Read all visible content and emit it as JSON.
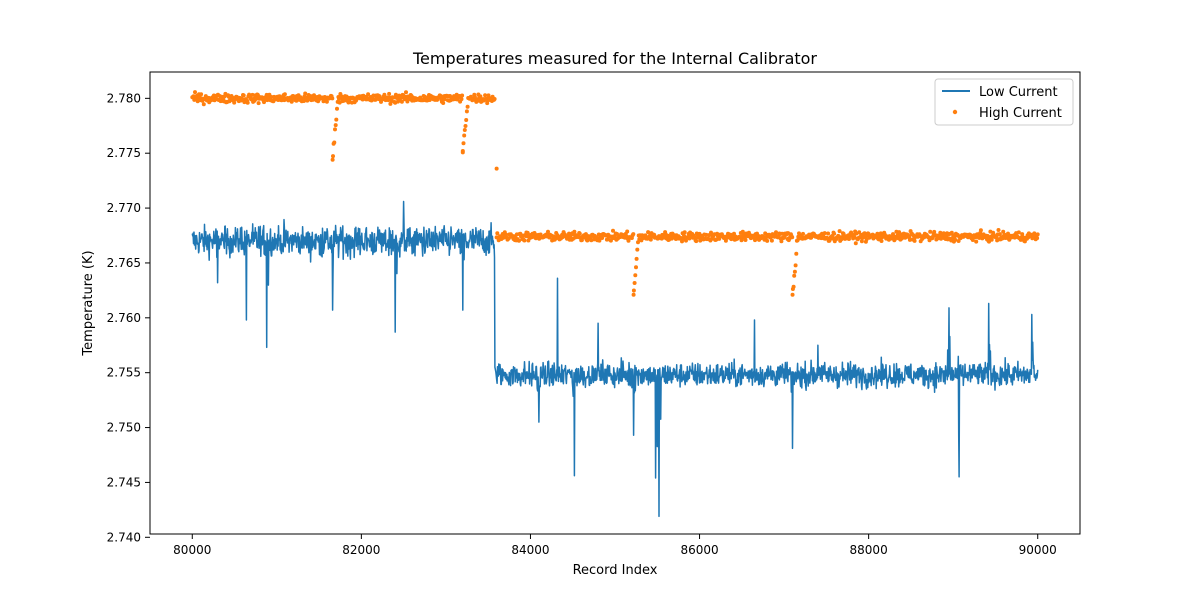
{
  "chart_data": {
    "type": "line",
    "title": "Temperatures measured for the Internal Calibrator",
    "xlabel": "Record Index",
    "ylabel": "Temperature (K)",
    "xlim": [
      79500,
      90500
    ],
    "ylim": [
      2.7403,
      2.7824
    ],
    "xticks": [
      80000,
      82000,
      84000,
      86000,
      88000,
      90000
    ],
    "xtick_labels": [
      "80000",
      "82000",
      "84000",
      "86000",
      "88000",
      "90000"
    ],
    "yticks": [
      2.74,
      2.745,
      2.75,
      2.755,
      2.76,
      2.765,
      2.77,
      2.775,
      2.78
    ],
    "ytick_labels": [
      "2.740",
      "2.745",
      "2.750",
      "2.755",
      "2.760",
      "2.765",
      "2.770",
      "2.775",
      "2.780"
    ],
    "grid": false,
    "legend_position": "top-right",
    "series": [
      {
        "name": "Low Current",
        "kind": "line",
        "color": "#1f77b4",
        "segments": [
          {
            "x_start": 80000,
            "x_end": 83580,
            "level": 2.767,
            "noise": 0.0012
          },
          {
            "x_start": 83590,
            "x_end": 90000,
            "level": 2.7548,
            "noise": 0.001
          }
        ],
        "spikes": [
          {
            "x": 80300,
            "y": 2.7632
          },
          {
            "x": 80640,
            "y": 2.7598
          },
          {
            "x": 80880,
            "y": 2.7573
          },
          {
            "x": 81660,
            "y": 2.7607
          },
          {
            "x": 82400,
            "y": 2.7587
          },
          {
            "x": 82500,
            "y": 2.7706
          },
          {
            "x": 83200,
            "y": 2.7607
          },
          {
            "x": 83580,
            "y": 2.7555
          },
          {
            "x": 84100,
            "y": 2.7505
          },
          {
            "x": 84320,
            "y": 2.7636
          },
          {
            "x": 84520,
            "y": 2.7456
          },
          {
            "x": 84800,
            "y": 2.7595
          },
          {
            "x": 85220,
            "y": 2.7493
          },
          {
            "x": 85480,
            "y": 2.7454
          },
          {
            "x": 85520,
            "y": 2.7419
          },
          {
            "x": 86650,
            "y": 2.7598
          },
          {
            "x": 87100,
            "y": 2.7481
          },
          {
            "x": 87400,
            "y": 2.7575
          },
          {
            "x": 88950,
            "y": 2.7609
          },
          {
            "x": 89070,
            "y": 2.7455
          },
          {
            "x": 89420,
            "y": 2.7613
          },
          {
            "x": 89930,
            "y": 2.7603
          }
        ]
      },
      {
        "name": "High Current",
        "kind": "scatter",
        "color": "#ff7f0e",
        "segments": [
          {
            "x_start": 80000,
            "x_end": 83580,
            "level": 2.78,
            "noise": 0.0002
          },
          {
            "x_start": 83600,
            "x_end": 90000,
            "level": 2.7674,
            "noise": 0.0002
          }
        ],
        "dips": [
          {
            "x": 81660,
            "y": 2.7744
          },
          {
            "x": 83200,
            "y": 2.7752
          },
          {
            "x": 85220,
            "y": 2.7621
          },
          {
            "x": 87100,
            "y": 2.7621
          }
        ],
        "outliers": [
          {
            "x": 83600,
            "y": 2.7736
          }
        ]
      }
    ]
  }
}
